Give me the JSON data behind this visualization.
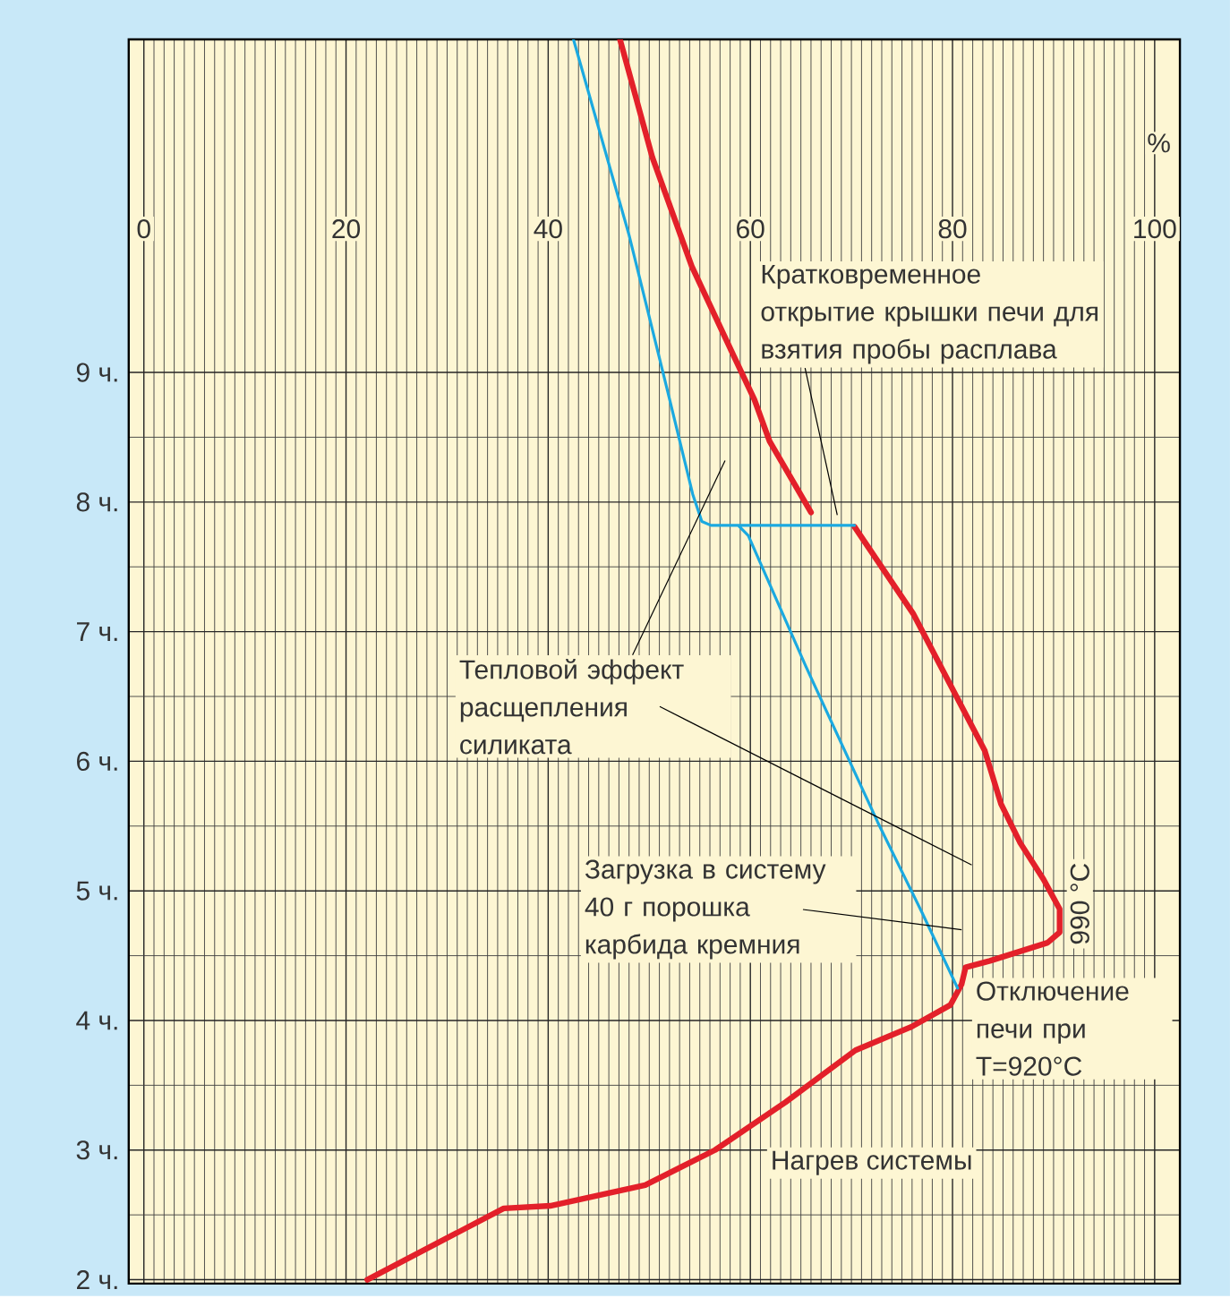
{
  "chart_data": {
    "type": "line",
    "xlabel": "%",
    "xlim": [
      -1.5,
      102.5
    ],
    "ylim": [
      1.97,
      11.57
    ],
    "xticks": [
      0,
      20,
      40,
      60,
      80,
      100
    ],
    "yticks": [
      {
        "value": 2,
        "label": "2 ч."
      },
      {
        "value": 3,
        "label": "3 ч."
      },
      {
        "value": 4,
        "label": "4 ч."
      },
      {
        "value": 5,
        "label": "5 ч."
      },
      {
        "value": 6,
        "label": "6 ч."
      },
      {
        "value": 7,
        "label": "7 ч."
      },
      {
        "value": 8,
        "label": "8 ч."
      },
      {
        "value": 9,
        "label": "9 ч."
      }
    ],
    "grid": true,
    "series": [
      {
        "color": "#e3202a",
        "x": [
          22.1,
          35.6,
          40.2,
          49.6,
          56.5,
          63.5,
          70.4,
          75.9,
          79.8,
          80.9,
          81.3,
          83.7,
          89.4,
          90.6,
          90.6,
          89.0,
          86.7,
          84.8,
          83.2,
          76.1,
          70.3,
          68.0,
          66.0,
          61.9,
          60.4,
          58.4,
          54.2,
          50.3,
          47.1
        ],
        "values": [
          2.0,
          2.55,
          2.57,
          2.73,
          3.0,
          3.37,
          3.77,
          3.95,
          4.12,
          4.28,
          4.41,
          4.46,
          4.6,
          4.68,
          4.86,
          5.09,
          5.37,
          5.67,
          6.08,
          7.14,
          7.81,
          null,
          7.92,
          8.47,
          8.79,
          9.12,
          9.82,
          10.66,
          11.57
        ]
      },
      {
        "color": "#1ba9e0",
        "x": [
          42.5,
          48.0,
          51.8,
          54.3,
          55.2,
          56.1,
          70.3,
          58.8,
          59.8,
          65.5,
          72.6,
          77.0,
          80.5
        ],
        "values": [
          11.57,
          10.06,
          8.86,
          8.06,
          7.85,
          7.82,
          7.82,
          7.82,
          7.74,
          6.73,
          5.53,
          4.83,
          4.25
        ]
      }
    ],
    "annotations": [
      {
        "text": "Кратковременное открытие крышки печи для взятия пробы расплава",
        "x": 68.6,
        "y": 7.9
      },
      "Тепловой эффект расщепления силиката",
      "Загрузка в систему 40 г порошка карбида кремния",
      "Отключение печи при T=920°C",
      "990 °C",
      "Нагрев системы"
    ]
  }
}
